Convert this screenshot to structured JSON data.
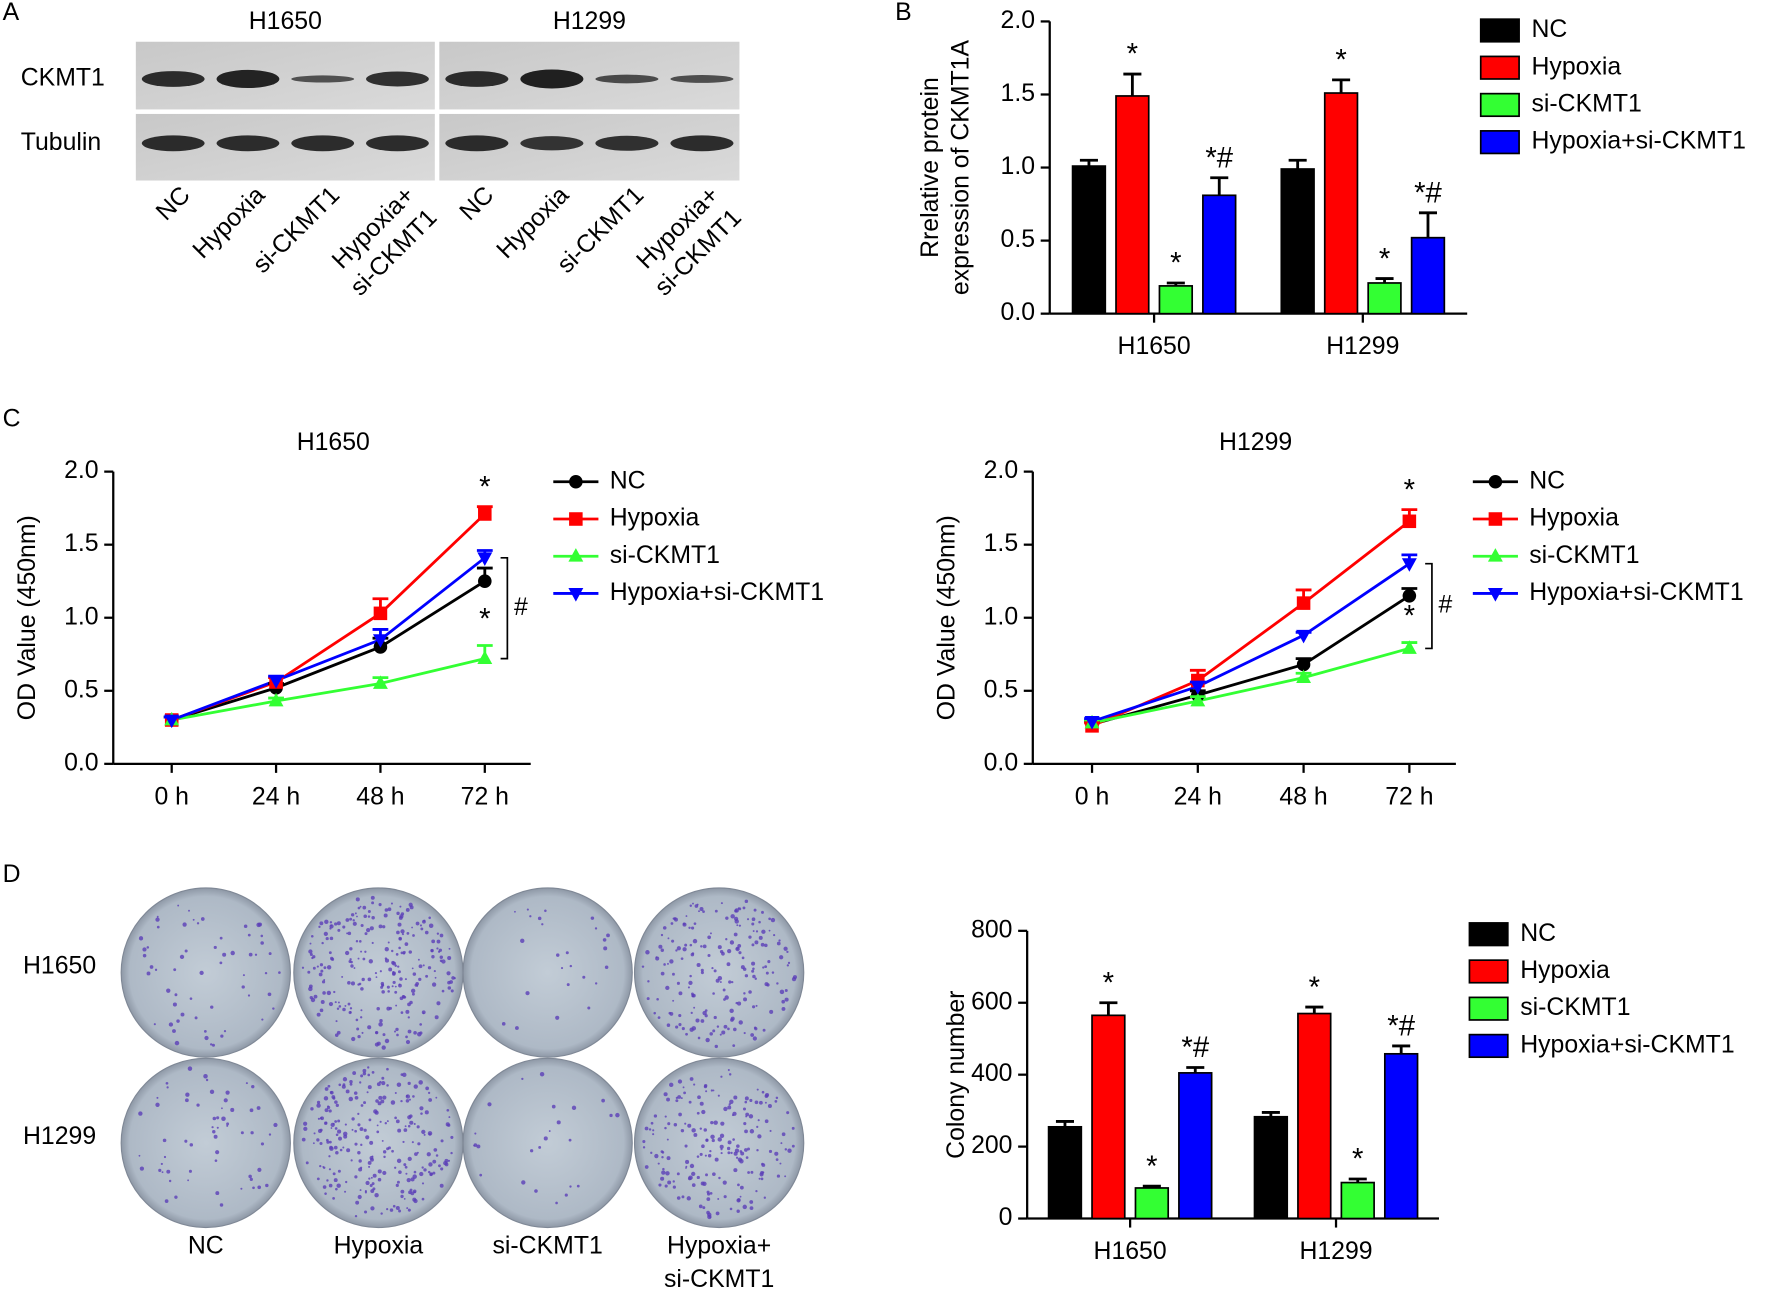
{
  "panel_labels": [
    "A",
    "B",
    "C",
    "D"
  ],
  "blot": {
    "cell_lines": [
      "H1650",
      "H1299"
    ],
    "proteins": [
      "CKMT1",
      "Tubulin"
    ],
    "lanes": [
      [
        "NC"
      ],
      [
        "Hypoxia"
      ],
      [
        "si-CKMT1"
      ],
      [
        "Hypoxia+",
        "si-CKMT1"
      ]
    ]
  },
  "plates": {
    "rows": [
      "H1650",
      "H1299"
    ],
    "columns": [
      [
        "NC"
      ],
      [
        "Hypoxia"
      ],
      [
        "si-CKMT1"
      ],
      [
        "Hypoxia+",
        "si-CKMT1"
      ]
    ]
  },
  "chart_data": [
    {
      "type": "bar",
      "ylabel": [
        "Rrelative protein",
        "expression of CKMT1A"
      ],
      "categories": [
        "H1650",
        "H1299"
      ],
      "series": [
        {
          "name": "NC",
          "color": "#000000",
          "values": [
            1.01,
            0.99
          ],
          "errors": [
            0.04,
            0.06
          ],
          "annotations": [
            null,
            null
          ]
        },
        {
          "name": "Hypoxia",
          "color": "#ff0000",
          "values": [
            1.49,
            1.51
          ],
          "errors": [
            0.15,
            0.09
          ],
          "annotations": [
            "*",
            "*"
          ]
        },
        {
          "name": "si-CKMT1",
          "color": "#33ff33",
          "values": [
            0.19,
            0.21
          ],
          "errors": [
            0.02,
            0.03
          ],
          "annotations": [
            "*",
            "*"
          ]
        },
        {
          "name": "Hypoxia+si-CKMT1",
          "color": "#0000ff",
          "values": [
            0.81,
            0.52
          ],
          "errors": [
            0.12,
            0.17
          ],
          "annotations": [
            "*#",
            "*#"
          ]
        }
      ],
      "ylim": [
        0,
        2
      ],
      "yticks": [
        {
          "value": 0,
          "label": "0.0"
        },
        0.5,
        {
          "value": 1,
          "label": "1.0"
        },
        1.5,
        {
          "value": 2,
          "label": "2.0"
        }
      ]
    },
    {
      "type": "line",
      "title": "H1650",
      "ylabel": "OD Value (450nm)",
      "categories": [
        "0 h",
        "24 h",
        "48 h",
        "72 h"
      ],
      "series": [
        {
          "name": "NC",
          "color": "#000000",
          "marker": "circle",
          "values": [
            0.3,
            0.52,
            0.8,
            1.25
          ],
          "errors": [
            0.02,
            0.03,
            0.06,
            0.09
          ],
          "annotations": [
            null,
            null,
            null,
            null
          ]
        },
        {
          "name": "Hypoxia",
          "color": "#ff0000",
          "marker": "square",
          "values": [
            0.3,
            0.56,
            1.03,
            1.71
          ],
          "errors": [
            0.02,
            0.03,
            0.1,
            0.05
          ],
          "annotations": [
            null,
            null,
            null,
            "*"
          ]
        },
        {
          "name": "si-CKMT1",
          "color": "#33ff33",
          "marker": "triangle-up",
          "values": [
            0.3,
            0.43,
            0.55,
            0.72
          ],
          "errors": [
            0.02,
            0.02,
            0.04,
            0.09
          ],
          "annotations": [
            null,
            null,
            null,
            "*"
          ]
        },
        {
          "name": "Hypoxia+si-CKMT1",
          "color": "#0000ff",
          "marker": "triangle-down",
          "values": [
            0.3,
            0.57,
            0.85,
            1.41
          ],
          "errors": [
            0.02,
            0.03,
            0.07,
            0.05
          ],
          "annotations": [
            null,
            null,
            null,
            null
          ]
        }
      ],
      "bracket_label": "#",
      "ylim": [
        0,
        2
      ],
      "yticks": [
        {
          "value": 0,
          "label": "0.0"
        },
        0.5,
        {
          "value": 1,
          "label": "1.0"
        },
        1.5,
        {
          "value": 2,
          "label": "2.0"
        }
      ]
    },
    {
      "type": "line",
      "title": "H1299",
      "ylabel": "OD Value (450nm)",
      "categories": [
        "0 h",
        "24 h",
        "48 h",
        "72 h"
      ],
      "series": [
        {
          "name": "NC",
          "color": "#000000",
          "marker": "circle",
          "values": [
            0.27,
            0.47,
            0.68,
            1.15
          ],
          "errors": [
            0.02,
            0.03,
            0.04,
            0.05
          ],
          "annotations": [
            null,
            null,
            null,
            null
          ]
        },
        {
          "name": "Hypoxia",
          "color": "#ff0000",
          "marker": "square",
          "values": [
            0.26,
            0.57,
            1.1,
            1.66
          ],
          "errors": [
            0.02,
            0.07,
            0.09,
            0.08
          ],
          "annotations": [
            null,
            null,
            null,
            "*"
          ]
        },
        {
          "name": "si-CKMT1",
          "color": "#33ff33",
          "marker": "triangle-up",
          "values": [
            0.28,
            0.43,
            0.59,
            0.79
          ],
          "errors": [
            0.02,
            0.03,
            0.03,
            0.04
          ],
          "annotations": [
            null,
            null,
            null,
            "*"
          ]
        },
        {
          "name": "Hypoxia+si-CKMT1",
          "color": "#0000ff",
          "marker": "triangle-down",
          "values": [
            0.29,
            0.53,
            0.88,
            1.37
          ],
          "errors": [
            0.02,
            0.03,
            0.02,
            0.06
          ],
          "annotations": [
            null,
            null,
            null,
            null
          ]
        }
      ],
      "bracket_label": "#",
      "ylim": [
        0,
        2
      ],
      "yticks": [
        {
          "value": 0,
          "label": "0.0"
        },
        0.5,
        {
          "value": 1,
          "label": "1.0"
        },
        1.5,
        {
          "value": 2,
          "label": "2.0"
        }
      ]
    },
    {
      "type": "bar",
      "ylabel": "Colony number",
      "categories": [
        "H1650",
        "H1299"
      ],
      "series": [
        {
          "name": "NC",
          "color": "#000000",
          "values": [
            255,
            283
          ],
          "errors": [
            15,
            12
          ],
          "annotations": [
            null,
            null
          ]
        },
        {
          "name": "Hypoxia",
          "color": "#ff0000",
          "values": [
            565,
            570
          ],
          "errors": [
            35,
            18
          ],
          "annotations": [
            "*",
            "*"
          ]
        },
        {
          "name": "si-CKMT1",
          "color": "#33ff33",
          "values": [
            85,
            100
          ],
          "errors": [
            5,
            10
          ],
          "annotations": [
            "*",
            "*"
          ]
        },
        {
          "name": "Hypoxia+si-CKMT1",
          "color": "#0000ff",
          "values": [
            405,
            458
          ],
          "errors": [
            15,
            22
          ],
          "annotations": [
            "*#",
            "*#"
          ]
        }
      ],
      "ylim": [
        0,
        800
      ],
      "yticks": [
        0,
        200,
        400,
        600,
        800
      ]
    }
  ]
}
